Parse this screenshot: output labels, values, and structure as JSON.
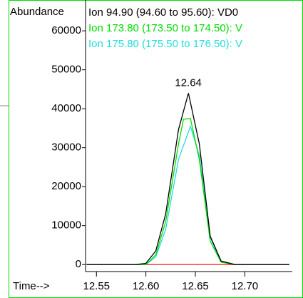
{
  "chart_data": {
    "type": "line",
    "y_label": "Abundance",
    "x_label": "Time-->",
    "annotations": [
      {
        "text": "12.64",
        "x": 12.64,
        "y": 44000
      }
    ],
    "xlim": [
      12.539,
      12.748
    ],
    "ylim": [
      -1800,
      67000
    ],
    "xticks": [
      12.55,
      12.6,
      12.65,
      12.7
    ],
    "xtick_labels": [
      "12.55",
      "12.60",
      "12.65",
      "12.70"
    ],
    "yticks": [
      0,
      10000,
      20000,
      30000,
      40000,
      50000,
      60000
    ],
    "series": [
      {
        "name": "Ion  94.90 (94.60 to 95.60): VD0",
        "color": "#000000",
        "x": [
          12.54,
          12.59,
          12.6,
          12.61,
          12.62,
          12.633,
          12.643,
          12.654,
          12.665,
          12.676,
          12.69,
          12.745
        ],
        "values": [
          0,
          0,
          300,
          3500,
          13000,
          34700,
          44000,
          31000,
          7300,
          900,
          0,
          0
        ]
      },
      {
        "name": "Ion 173.80 (173.50 to 174.50): V",
        "color": "#00dd00",
        "x": [
          12.54,
          12.6,
          12.61,
          12.62,
          12.633,
          12.638,
          12.645,
          12.654,
          12.665,
          12.676,
          12.69,
          12.745
        ],
        "values": [
          0,
          0,
          2500,
          11000,
          31000,
          37300,
          37500,
          27000,
          6000,
          600,
          0,
          0
        ]
      },
      {
        "name": "Ion 175.80 (175.50 to 176.50): V",
        "color": "#22dddd",
        "x": [
          12.54,
          12.6,
          12.61,
          12.62,
          12.633,
          12.645,
          12.654,
          12.665,
          12.676,
          12.69,
          12.745
        ],
        "values": [
          0,
          0,
          2000,
          9000,
          27000,
          35500,
          28000,
          7000,
          700,
          0,
          0
        ]
      },
      {
        "color": "#ff3030",
        "x": [
          12.595,
          12.7
        ],
        "values": [
          0,
          0
        ]
      }
    ]
  }
}
